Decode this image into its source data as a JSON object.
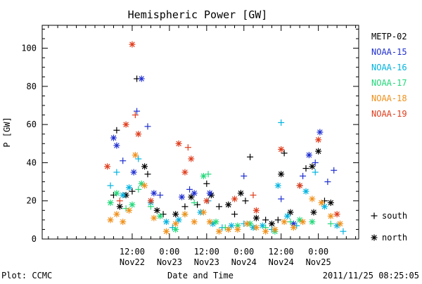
{
  "chart_data": {
    "type": "scatter",
    "title": "Hemispheric Power [GW]",
    "ylabel": "P [GW]",
    "xlabel": "Date and Time",
    "ylim": [
      0,
      112
    ],
    "yticks": [
      0,
      20,
      40,
      60,
      80,
      100
    ],
    "xlim": [
      "2011-11-21T07:00",
      "2011-11-25T13:00"
    ],
    "x_ticks": [
      {
        "t": "2011-11-22T12:00",
        "time": "12:00",
        "date": "Nov22"
      },
      {
        "t": "2011-11-23T00:00",
        "time": "0:00",
        "date": "Nov23"
      },
      {
        "t": "2011-11-23T12:00",
        "time": "12:00",
        "date": "Nov23"
      },
      {
        "t": "2011-11-24T00:00",
        "time": "0:00",
        "date": "Nov24"
      },
      {
        "t": "2011-11-24T12:00",
        "time": "12:00",
        "date": "Nov24"
      },
      {
        "t": "2011-11-25T00:00",
        "time": "0:00",
        "date": "Nov25"
      }
    ],
    "grid": false,
    "legend_position": "right",
    "marker_legend": {
      "south": "south",
      "north": "north"
    },
    "series": [
      {
        "name": "METP-02",
        "color": "#000000",
        "points": [
          {
            "t": "2011-11-22T06:00",
            "y": 23,
            "h": "south"
          },
          {
            "t": "2011-11-22T07:00",
            "y": 57,
            "h": "south"
          },
          {
            "t": "2011-11-22T08:00",
            "y": 17,
            "h": "north"
          },
          {
            "t": "2011-11-22T10:00",
            "y": 23,
            "h": "north"
          },
          {
            "t": "2011-11-22T12:00",
            "y": 25,
            "h": "south"
          },
          {
            "t": "2011-11-22T13:30",
            "y": 84,
            "h": "south"
          },
          {
            "t": "2011-11-22T16:00",
            "y": 38,
            "h": "north"
          },
          {
            "t": "2011-11-22T17:00",
            "y": 34,
            "h": "south"
          },
          {
            "t": "2011-11-22T20:00",
            "y": 15,
            "h": "north"
          },
          {
            "t": "2011-11-22T22:00",
            "y": 13,
            "h": "south"
          },
          {
            "t": "2011-11-23T02:00",
            "y": 13,
            "h": "north"
          },
          {
            "t": "2011-11-23T05:00",
            "y": 17,
            "h": "south"
          },
          {
            "t": "2011-11-23T07:00",
            "y": 22,
            "h": "north"
          },
          {
            "t": "2011-11-23T09:00",
            "y": 18,
            "h": "south"
          },
          {
            "t": "2011-11-23T12:00",
            "y": 29,
            "h": "south"
          },
          {
            "t": "2011-11-23T13:30",
            "y": 23,
            "h": "north"
          },
          {
            "t": "2011-11-23T16:00",
            "y": 17,
            "h": "south"
          },
          {
            "t": "2011-11-23T19:00",
            "y": 18,
            "h": "north"
          },
          {
            "t": "2011-11-23T21:00",
            "y": 13,
            "h": "south"
          },
          {
            "t": "2011-11-23T23:00",
            "y": 24,
            "h": "north"
          },
          {
            "t": "2011-11-24T00:30",
            "y": 20,
            "h": "south"
          },
          {
            "t": "2011-11-24T02:00",
            "y": 43,
            "h": "south"
          },
          {
            "t": "2011-11-24T04:00",
            "y": 11,
            "h": "north"
          },
          {
            "t": "2011-11-24T07:00",
            "y": 10,
            "h": "south"
          },
          {
            "t": "2011-11-24T09:00",
            "y": 8,
            "h": "north"
          },
          {
            "t": "2011-11-24T11:00",
            "y": 10,
            "h": "south"
          },
          {
            "t": "2011-11-24T12:00",
            "y": 34,
            "h": "north"
          },
          {
            "t": "2011-11-24T13:00",
            "y": 45,
            "h": "south"
          },
          {
            "t": "2011-11-24T15:00",
            "y": 14,
            "h": "north"
          },
          {
            "t": "2011-11-24T18:00",
            "y": 28,
            "h": "south"
          },
          {
            "t": "2011-11-24T20:00",
            "y": 37,
            "h": "south"
          },
          {
            "t": "2011-11-24T22:00",
            "y": 38,
            "h": "north"
          },
          {
            "t": "2011-11-24T22:30",
            "y": 14,
            "h": "north"
          },
          {
            "t": "2011-11-25T00:00",
            "y": 46,
            "h": "north"
          },
          {
            "t": "2011-11-25T02:00",
            "y": 20,
            "h": "south"
          },
          {
            "t": "2011-11-25T04:00",
            "y": 19,
            "h": "north"
          }
        ]
      },
      {
        "name": "NOAA-15",
        "color": "#1f2fd0",
        "points": [
          {
            "t": "2011-11-22T06:00",
            "y": 53,
            "h": "north"
          },
          {
            "t": "2011-11-22T07:00",
            "y": 49,
            "h": "north"
          },
          {
            "t": "2011-11-22T09:00",
            "y": 41,
            "h": "south"
          },
          {
            "t": "2011-11-22T12:30",
            "y": 35,
            "h": "north"
          },
          {
            "t": "2011-11-22T13:30",
            "y": 67,
            "h": "south"
          },
          {
            "t": "2011-11-22T15:00",
            "y": 84,
            "h": "north"
          },
          {
            "t": "2011-11-22T17:00",
            "y": 59,
            "h": "south"
          },
          {
            "t": "2011-11-22T19:00",
            "y": 24,
            "h": "north"
          },
          {
            "t": "2011-11-22T21:00",
            "y": 23,
            "h": "south"
          },
          {
            "t": "2011-11-23T04:00",
            "y": 22,
            "h": "north"
          },
          {
            "t": "2011-11-23T06:30",
            "y": 26,
            "h": "south"
          },
          {
            "t": "2011-11-23T08:00",
            "y": 24,
            "h": "north"
          },
          {
            "t": "2011-11-23T13:00",
            "y": 24,
            "h": "north"
          },
          {
            "t": "2011-11-24T00:00",
            "y": 33,
            "h": "south"
          },
          {
            "t": "2011-11-24T12:00",
            "y": 21,
            "h": "south"
          },
          {
            "t": "2011-11-24T16:00",
            "y": 8,
            "h": "north"
          },
          {
            "t": "2011-11-24T19:00",
            "y": 33,
            "h": "south"
          },
          {
            "t": "2011-11-24T21:00",
            "y": 44,
            "h": "north"
          },
          {
            "t": "2011-11-24T23:00",
            "y": 40,
            "h": "south"
          },
          {
            "t": "2011-11-25T00:30",
            "y": 56,
            "h": "north"
          },
          {
            "t": "2011-11-25T03:00",
            "y": 30,
            "h": "south"
          },
          {
            "t": "2011-11-25T05:00",
            "y": 36,
            "h": "south"
          }
        ]
      },
      {
        "name": "NOAA-16",
        "color": "#00b3e0",
        "points": [
          {
            "t": "2011-11-22T05:00",
            "y": 28,
            "h": "south"
          },
          {
            "t": "2011-11-22T07:00",
            "y": 35,
            "h": "south"
          },
          {
            "t": "2011-11-22T09:00",
            "y": 23,
            "h": "north"
          },
          {
            "t": "2011-11-22T11:00",
            "y": 27,
            "h": "north"
          },
          {
            "t": "2011-11-22T14:00",
            "y": 42,
            "h": "south"
          },
          {
            "t": "2011-11-22T18:00",
            "y": 19,
            "h": "north"
          },
          {
            "t": "2011-11-22T23:00",
            "y": 9,
            "h": "north"
          },
          {
            "t": "2011-11-23T01:00",
            "y": 6,
            "h": "south"
          },
          {
            "t": "2011-11-23T03:00",
            "y": 10,
            "h": "north"
          },
          {
            "t": "2011-11-23T10:00",
            "y": 14,
            "h": "north"
          },
          {
            "t": "2011-11-23T12:30",
            "y": 20,
            "h": "south"
          },
          {
            "t": "2011-11-23T14:00",
            "y": 8,
            "h": "north"
          },
          {
            "t": "2011-11-23T17:00",
            "y": 6,
            "h": "south"
          },
          {
            "t": "2011-11-23T20:00",
            "y": 7,
            "h": "north"
          },
          {
            "t": "2011-11-24T00:00",
            "y": 8,
            "h": "south"
          },
          {
            "t": "2011-11-24T03:00",
            "y": 6,
            "h": "north"
          },
          {
            "t": "2011-11-24T06:00",
            "y": 7,
            "h": "north"
          },
          {
            "t": "2011-11-24T09:00",
            "y": 5,
            "h": "south"
          },
          {
            "t": "2011-11-24T11:00",
            "y": 28,
            "h": "north"
          },
          {
            "t": "2011-11-24T12:00",
            "y": 61,
            "h": "south"
          },
          {
            "t": "2011-11-24T14:00",
            "y": 12,
            "h": "north"
          },
          {
            "t": "2011-11-24T17:00",
            "y": 7,
            "h": "south"
          },
          {
            "t": "2011-11-24T20:00",
            "y": 25,
            "h": "north"
          },
          {
            "t": "2011-11-24T23:00",
            "y": 35,
            "h": "south"
          },
          {
            "t": "2011-11-25T02:00",
            "y": 17,
            "h": "north"
          },
          {
            "t": "2011-11-25T06:00",
            "y": 7,
            "h": "north"
          },
          {
            "t": "2011-11-25T08:00",
            "y": 4,
            "h": "south"
          }
        ]
      },
      {
        "name": "NOAA-17",
        "color": "#22d87a",
        "points": [
          {
            "t": "2011-11-22T05:00",
            "y": 19,
            "h": "north"
          },
          {
            "t": "2011-11-22T07:00",
            "y": 24,
            "h": "north"
          },
          {
            "t": "2011-11-22T10:00",
            "y": 16,
            "h": "south"
          },
          {
            "t": "2011-11-22T12:00",
            "y": 18,
            "h": "north"
          },
          {
            "t": "2011-11-22T14:00",
            "y": 26,
            "h": "south"
          },
          {
            "t": "2011-11-22T15:00",
            "y": 29,
            "h": "north"
          },
          {
            "t": "2011-11-22T18:00",
            "y": 17,
            "h": "south"
          },
          {
            "t": "2011-11-22T21:00",
            "y": 12,
            "h": "north"
          },
          {
            "t": "2011-11-23T02:00",
            "y": 5,
            "h": "north"
          },
          {
            "t": "2011-11-23T05:00",
            "y": 13,
            "h": "south"
          },
          {
            "t": "2011-11-23T08:00",
            "y": 19,
            "h": "south"
          },
          {
            "t": "2011-11-23T11:00",
            "y": 33,
            "h": "north"
          },
          {
            "t": "2011-11-23T12:30",
            "y": 34,
            "h": "south"
          },
          {
            "t": "2011-11-23T15:00",
            "y": 9,
            "h": "north"
          },
          {
            "t": "2011-11-23T18:00",
            "y": 6,
            "h": "south"
          },
          {
            "t": "2011-11-23T22:00",
            "y": 7,
            "h": "north"
          },
          {
            "t": "2011-11-24T02:00",
            "y": 8,
            "h": "north"
          },
          {
            "t": "2011-11-24T07:00",
            "y": 6,
            "h": "south"
          },
          {
            "t": "2011-11-24T10:00",
            "y": 4,
            "h": "north"
          },
          {
            "t": "2011-11-24T15:00",
            "y": 9,
            "h": "south"
          },
          {
            "t": "2011-11-24T18:00",
            "y": 10,
            "h": "north"
          },
          {
            "t": "2011-11-24T22:00",
            "y": 9,
            "h": "north"
          },
          {
            "t": "2011-11-25T04:00",
            "y": 8,
            "h": "south"
          }
        ]
      },
      {
        "name": "NOAA-18",
        "color": "#f0901a",
        "points": [
          {
            "t": "2011-11-22T05:00",
            "y": 10,
            "h": "north"
          },
          {
            "t": "2011-11-22T07:00",
            "y": 13,
            "h": "north"
          },
          {
            "t": "2011-11-22T09:00",
            "y": 9,
            "h": "north"
          },
          {
            "t": "2011-11-22T11:00",
            "y": 15,
            "h": "north"
          },
          {
            "t": "2011-11-22T13:00",
            "y": 44,
            "h": "north"
          },
          {
            "t": "2011-11-22T16:00",
            "y": 28,
            "h": "north"
          },
          {
            "t": "2011-11-22T19:00",
            "y": 11,
            "h": "north"
          },
          {
            "t": "2011-11-22T23:00",
            "y": 4,
            "h": "north"
          },
          {
            "t": "2011-11-23T02:00",
            "y": 8,
            "h": "north"
          },
          {
            "t": "2011-11-23T05:00",
            "y": 13,
            "h": "north"
          },
          {
            "t": "2011-11-23T08:00",
            "y": 9,
            "h": "north"
          },
          {
            "t": "2011-11-23T11:00",
            "y": 14,
            "h": "north"
          },
          {
            "t": "2011-11-23T13:00",
            "y": 9,
            "h": "north"
          },
          {
            "t": "2011-11-23T16:00",
            "y": 4,
            "h": "north"
          },
          {
            "t": "2011-11-23T19:00",
            "y": 5,
            "h": "north"
          },
          {
            "t": "2011-11-23T22:00",
            "y": 5,
            "h": "north"
          },
          {
            "t": "2011-11-24T01:00",
            "y": 8,
            "h": "north"
          },
          {
            "t": "2011-11-24T04:00",
            "y": 6,
            "h": "north"
          },
          {
            "t": "2011-11-24T07:00",
            "y": 4,
            "h": "north"
          },
          {
            "t": "2011-11-24T10:00",
            "y": 5,
            "h": "north"
          },
          {
            "t": "2011-11-24T13:00",
            "y": 9,
            "h": "north"
          },
          {
            "t": "2011-11-24T16:00",
            "y": 6,
            "h": "north"
          },
          {
            "t": "2011-11-24T19:00",
            "y": 9,
            "h": "north"
          },
          {
            "t": "2011-11-24T22:00",
            "y": 21,
            "h": "north"
          },
          {
            "t": "2011-11-25T01:00",
            "y": 19,
            "h": "north"
          },
          {
            "t": "2011-11-25T04:00",
            "y": 12,
            "h": "north"
          },
          {
            "t": "2011-11-25T07:00",
            "y": 8,
            "h": "north"
          }
        ]
      },
      {
        "name": "NOAA-19",
        "color": "#e03c1c",
        "points": [
          {
            "t": "2011-11-22T04:00",
            "y": 38,
            "h": "north"
          },
          {
            "t": "2011-11-22T08:00",
            "y": 20,
            "h": "south"
          },
          {
            "t": "2011-11-22T10:00",
            "y": 60,
            "h": "north"
          },
          {
            "t": "2011-11-22T12:00",
            "y": 102,
            "h": "north"
          },
          {
            "t": "2011-11-22T13:00",
            "y": 65,
            "h": "south"
          },
          {
            "t": "2011-11-22T14:00",
            "y": 55,
            "h": "north"
          },
          {
            "t": "2011-11-22T18:00",
            "y": 20,
            "h": "north"
          },
          {
            "t": "2011-11-23T03:00",
            "y": 50,
            "h": "north"
          },
          {
            "t": "2011-11-23T05:00",
            "y": 35,
            "h": "north"
          },
          {
            "t": "2011-11-23T06:00",
            "y": 48,
            "h": "south"
          },
          {
            "t": "2011-11-23T07:00",
            "y": 42,
            "h": "north"
          },
          {
            "t": "2011-11-23T12:00",
            "y": 20,
            "h": "north"
          },
          {
            "t": "2011-11-23T21:00",
            "y": 21,
            "h": "north"
          },
          {
            "t": "2011-11-24T03:00",
            "y": 23,
            "h": "south"
          },
          {
            "t": "2011-11-24T04:00",
            "y": 15,
            "h": "north"
          },
          {
            "t": "2011-11-24T12:00",
            "y": 47,
            "h": "north"
          },
          {
            "t": "2011-11-24T18:00",
            "y": 28,
            "h": "north"
          },
          {
            "t": "2011-11-25T00:00",
            "y": 52,
            "h": "north"
          },
          {
            "t": "2011-11-25T06:00",
            "y": 13,
            "h": "north"
          }
        ]
      }
    ]
  },
  "footer": {
    "left": "Plot: CCMC",
    "right": "2011/11/25 08:25:05"
  }
}
